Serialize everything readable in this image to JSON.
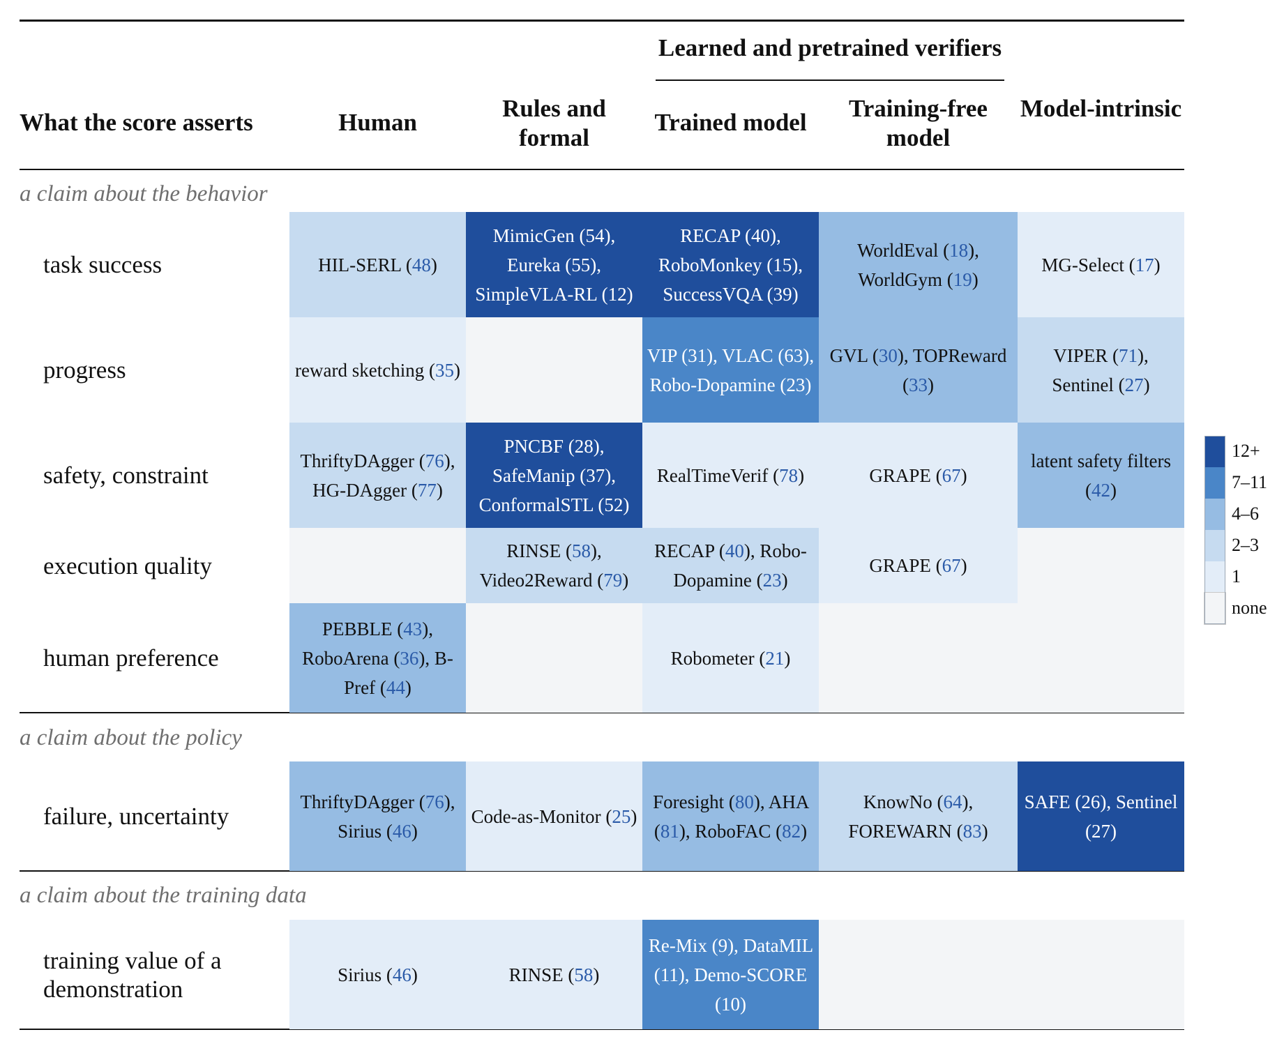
{
  "header": {
    "group_label": "Learned and pretrained verifiers",
    "row_header": "What the score asserts",
    "columns": [
      "Human",
      "Rules and formal",
      "Trained model",
      "Training-free model",
      "Model-intrinsic"
    ]
  },
  "legend": {
    "title": "",
    "items": [
      {
        "label": "12+",
        "color": "#1f4e9c"
      },
      {
        "label": "7–11",
        "color": "#4a86c8"
      },
      {
        "label": "4–6",
        "color": "#96bce3"
      },
      {
        "label": "2–3",
        "color": "#c6dbf0"
      },
      {
        "label": "1",
        "color": "#e3edf8"
      },
      {
        "label": "none",
        "color": "#f3f5f7"
      }
    ]
  },
  "sections": [
    {
      "title": "a claim about the behavior",
      "rows": [
        {
          "label": "task success",
          "cells": [
            {
              "level": "2–3",
              "entries": [
                {
                  "name": "HIL-SERL",
                  "ref": "48"
                }
              ]
            },
            {
              "level": "12+",
              "entries": [
                {
                  "name": "MimicGen",
                  "ref": "54"
                },
                {
                  "name": "Eureka",
                  "ref": "55"
                },
                {
                  "name": "SimpleVLA-RL",
                  "ref": "12"
                }
              ]
            },
            {
              "level": "12+",
              "entries": [
                {
                  "name": "RECAP",
                  "ref": "40"
                },
                {
                  "name": "RoboMonkey",
                  "ref": "15"
                },
                {
                  "name": "SuccessVQA",
                  "ref": "39"
                }
              ]
            },
            {
              "level": "4–6",
              "entries": [
                {
                  "name": "WorldEval",
                  "ref": "18"
                },
                {
                  "name": "WorldGym",
                  "ref": "19"
                }
              ]
            },
            {
              "level": "1",
              "entries": [
                {
                  "name": "MG-Select",
                  "ref": "17"
                }
              ]
            }
          ]
        },
        {
          "label": "progress",
          "cells": [
            {
              "level": "1",
              "entries": [
                {
                  "name": "reward sketching",
                  "ref": "35"
                }
              ]
            },
            {
              "level": "none",
              "entries": []
            },
            {
              "level": "7–11",
              "entries": [
                {
                  "name": "VIP",
                  "ref": "31"
                },
                {
                  "name": "VLAC",
                  "ref": "63"
                },
                {
                  "name": "Robo-Dopamine",
                  "ref": "23"
                }
              ]
            },
            {
              "level": "4–6",
              "entries": [
                {
                  "name": "GVL",
                  "ref": "30"
                },
                {
                  "name": "TOPReward",
                  "ref": "33"
                }
              ]
            },
            {
              "level": "2–3",
              "entries": [
                {
                  "name": "VIPER",
                  "ref": "71"
                },
                {
                  "name": "Sentinel",
                  "ref": "27"
                }
              ]
            }
          ]
        },
        {
          "label": "safety, constraint",
          "cells": [
            {
              "level": "2–3",
              "entries": [
                {
                  "name": "ThriftyDAgger",
                  "ref": "76"
                },
                {
                  "name": "HG-DAgger",
                  "ref": "77"
                }
              ]
            },
            {
              "level": "12+",
              "entries": [
                {
                  "name": "PNCBF",
                  "ref": "28"
                },
                {
                  "name": "SafeManip",
                  "ref": "37"
                },
                {
                  "name": "ConformalSTL",
                  "ref": "52"
                }
              ]
            },
            {
              "level": "1",
              "entries": [
                {
                  "name": "RealTimeVerif",
                  "ref": "78"
                }
              ]
            },
            {
              "level": "1",
              "entries": [
                {
                  "name": "GRAPE",
                  "ref": "67"
                }
              ]
            },
            {
              "level": "4–6",
              "entries": [
                {
                  "name": "latent safety filters",
                  "ref": "42"
                }
              ]
            }
          ]
        },
        {
          "label": "execution quality",
          "cells": [
            {
              "level": "none",
              "entries": []
            },
            {
              "level": "2–3",
              "entries": [
                {
                  "name": "RINSE",
                  "ref": "58"
                },
                {
                  "name": "Video2Reward",
                  "ref": "79"
                }
              ]
            },
            {
              "level": "2–3",
              "entries": [
                {
                  "name": "RECAP",
                  "ref": "40"
                },
                {
                  "name": "Robo-Dopamine",
                  "ref": "23"
                }
              ]
            },
            {
              "level": "1",
              "entries": [
                {
                  "name": "GRAPE",
                  "ref": "67"
                }
              ]
            },
            {
              "level": "none",
              "entries": []
            }
          ]
        },
        {
          "label": "human preference",
          "cells": [
            {
              "level": "4–6",
              "entries": [
                {
                  "name": "PEBBLE",
                  "ref": "43"
                },
                {
                  "name": "RoboArena",
                  "ref": "36"
                },
                {
                  "name": "B-Pref",
                  "ref": "44"
                }
              ]
            },
            {
              "level": "none",
              "entries": []
            },
            {
              "level": "1",
              "entries": [
                {
                  "name": "Robometer",
                  "ref": "21"
                }
              ]
            },
            {
              "level": "none",
              "entries": []
            },
            {
              "level": "none",
              "entries": []
            }
          ]
        }
      ]
    },
    {
      "title": "a claim about the policy",
      "rows": [
        {
          "label": "failure, uncertainty",
          "cells": [
            {
              "level": "4–6",
              "entries": [
                {
                  "name": "ThriftyDAgger",
                  "ref": "76"
                },
                {
                  "name": "Sirius",
                  "ref": "46"
                }
              ]
            },
            {
              "level": "1",
              "entries": [
                {
                  "name": "Code-as-Monitor",
                  "ref": "25"
                }
              ]
            },
            {
              "level": "4–6",
              "entries": [
                {
                  "name": "Foresight",
                  "ref": "80"
                },
                {
                  "name": "AHA",
                  "ref": "81"
                },
                {
                  "name": "RoboFAC",
                  "ref": "82"
                }
              ]
            },
            {
              "level": "2–3",
              "entries": [
                {
                  "name": "KnowNo",
                  "ref": "64"
                },
                {
                  "name": "FOREWARN",
                  "ref": "83"
                }
              ]
            },
            {
              "level": "12+",
              "entries": [
                {
                  "name": "SAFE",
                  "ref": "26"
                },
                {
                  "name": "Sentinel",
                  "ref": "27"
                }
              ]
            }
          ]
        }
      ]
    },
    {
      "title": "a claim about the training data",
      "rows": [
        {
          "label": "training value of a demonstration",
          "cells": [
            {
              "level": "1",
              "entries": [
                {
                  "name": "Sirius",
                  "ref": "46"
                }
              ]
            },
            {
              "level": "1",
              "entries": [
                {
                  "name": "RINSE",
                  "ref": "58"
                }
              ]
            },
            {
              "level": "7–11",
              "entries": [
                {
                  "name": "Re-Mix",
                  "ref": "9"
                },
                {
                  "name": "DataMIL",
                  "ref": "11"
                },
                {
                  "name": "Demo-SCORE",
                  "ref": "10"
                }
              ]
            },
            {
              "level": "none",
              "entries": []
            },
            {
              "level": "none",
              "entries": []
            }
          ]
        }
      ]
    }
  ]
}
